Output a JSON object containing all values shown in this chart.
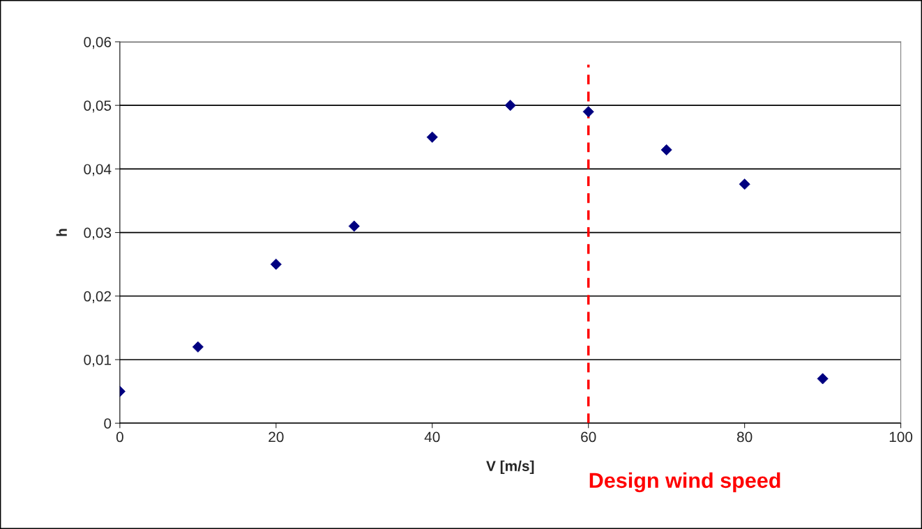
{
  "chart_data": {
    "type": "scatter",
    "xlabel": "V [m/s]",
    "ylabel": "h",
    "x": [
      0,
      10,
      20,
      30,
      40,
      50,
      60,
      70,
      80,
      90
    ],
    "series": [
      {
        "color": "#000080",
        "values": [
          0.005,
          0.012,
          0.025,
          0.031,
          0.045,
          0.05,
          0.049,
          0.043,
          0.0376,
          0.007
        ]
      }
    ],
    "marker": "diamond",
    "xlim": [
      0,
      100
    ],
    "xticks": [
      0,
      20,
      40,
      60,
      80,
      100
    ],
    "ylim": [
      0,
      0.06
    ],
    "yticks": [
      0,
      {
        "value": 0.01,
        "label": "0,01"
      },
      {
        "value": 0.02,
        "label": "0,02"
      },
      {
        "value": 0.03,
        "label": "0,03"
      },
      {
        "value": 0.04,
        "label": "0,04"
      },
      {
        "value": 0.05,
        "label": "0,05"
      },
      {
        "value": 0.06,
        "label": "0,06"
      }
    ],
    "grid": "y",
    "legend": false,
    "ref_lines": [
      {
        "axis": "x",
        "value": 60,
        "label": "Design wind speed",
        "color": "#ff0000",
        "line_style": "dashed"
      }
    ]
  }
}
